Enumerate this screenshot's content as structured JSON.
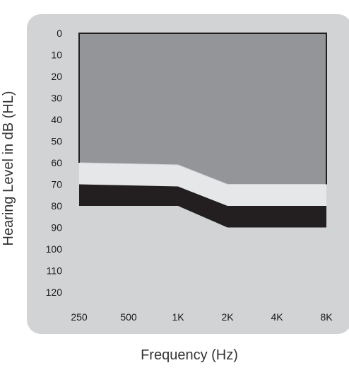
{
  "chart_data": {
    "type": "area",
    "title": "",
    "xlabel": "Frequency (Hz)",
    "ylabel": "Hearing Level in dB (HL)",
    "y_reversed": true,
    "ylim": [
      0,
      120
    ],
    "y_ticks": [
      "0",
      "10",
      "20",
      "30",
      "40",
      "50",
      "60",
      "70",
      "80",
      "90",
      "100",
      "110",
      "120"
    ],
    "categories": [
      "250",
      "500",
      "1K",
      "2K",
      "4K",
      "8K"
    ],
    "series": [
      {
        "color": "#939598",
        "values": [
          60,
          60.5,
          61,
          70,
          70,
          70
        ]
      },
      {
        "color": "#e6e7e8",
        "values": [
          70,
          70.5,
          71,
          80,
          80,
          80
        ]
      },
      {
        "color": "#231f20",
        "values": [
          80,
          80,
          80,
          90,
          90,
          90
        ]
      }
    ],
    "grid": false,
    "legend": "none",
    "colors": {
      "panel": "#d1d3d4",
      "outline": "#231f20"
    }
  }
}
